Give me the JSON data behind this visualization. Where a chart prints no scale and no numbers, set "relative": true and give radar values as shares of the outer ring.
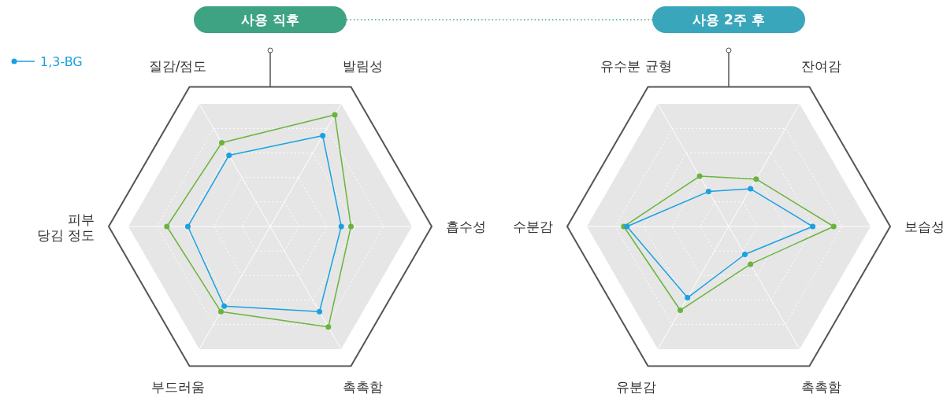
{
  "chart_data": [
    {
      "type": "radar",
      "title": "사용 직후",
      "relative": true,
      "grid": true,
      "marker": "circle",
      "legend": "top left",
      "categories": [
        "발림성",
        "흡수성",
        "촉촉함",
        "부드러움",
        "피부\n당김 정도",
        "질감/점도"
      ],
      "series": [
        {
          "color": "#6ab43e",
          "values": [
            0.8,
            0.5,
            0.72,
            0.61,
            0.64,
            0.6
          ]
        },
        {
          "name": "1,3-BG",
          "color": "#1ba1e2",
          "values": [
            0.65,
            0.44,
            0.61,
            0.57,
            0.51,
            0.51
          ]
        }
      ]
    },
    {
      "type": "radar",
      "title": "사용 2주 후",
      "relative": true,
      "grid": true,
      "marker": "circle",
      "categories": [
        "잔여감",
        "보습성",
        "촉촉함",
        "유분감",
        "수분감",
        "유수분 균형"
      ],
      "series": [
        {
          "color": "#6ab43e",
          "values": [
            0.34,
            0.65,
            0.27,
            0.6,
            0.65,
            0.36
          ]
        },
        {
          "color": "#1ba1e2",
          "values": [
            0.27,
            0.52,
            0.2,
            0.51,
            0.63,
            0.25
          ]
        }
      ]
    }
  ]
}
